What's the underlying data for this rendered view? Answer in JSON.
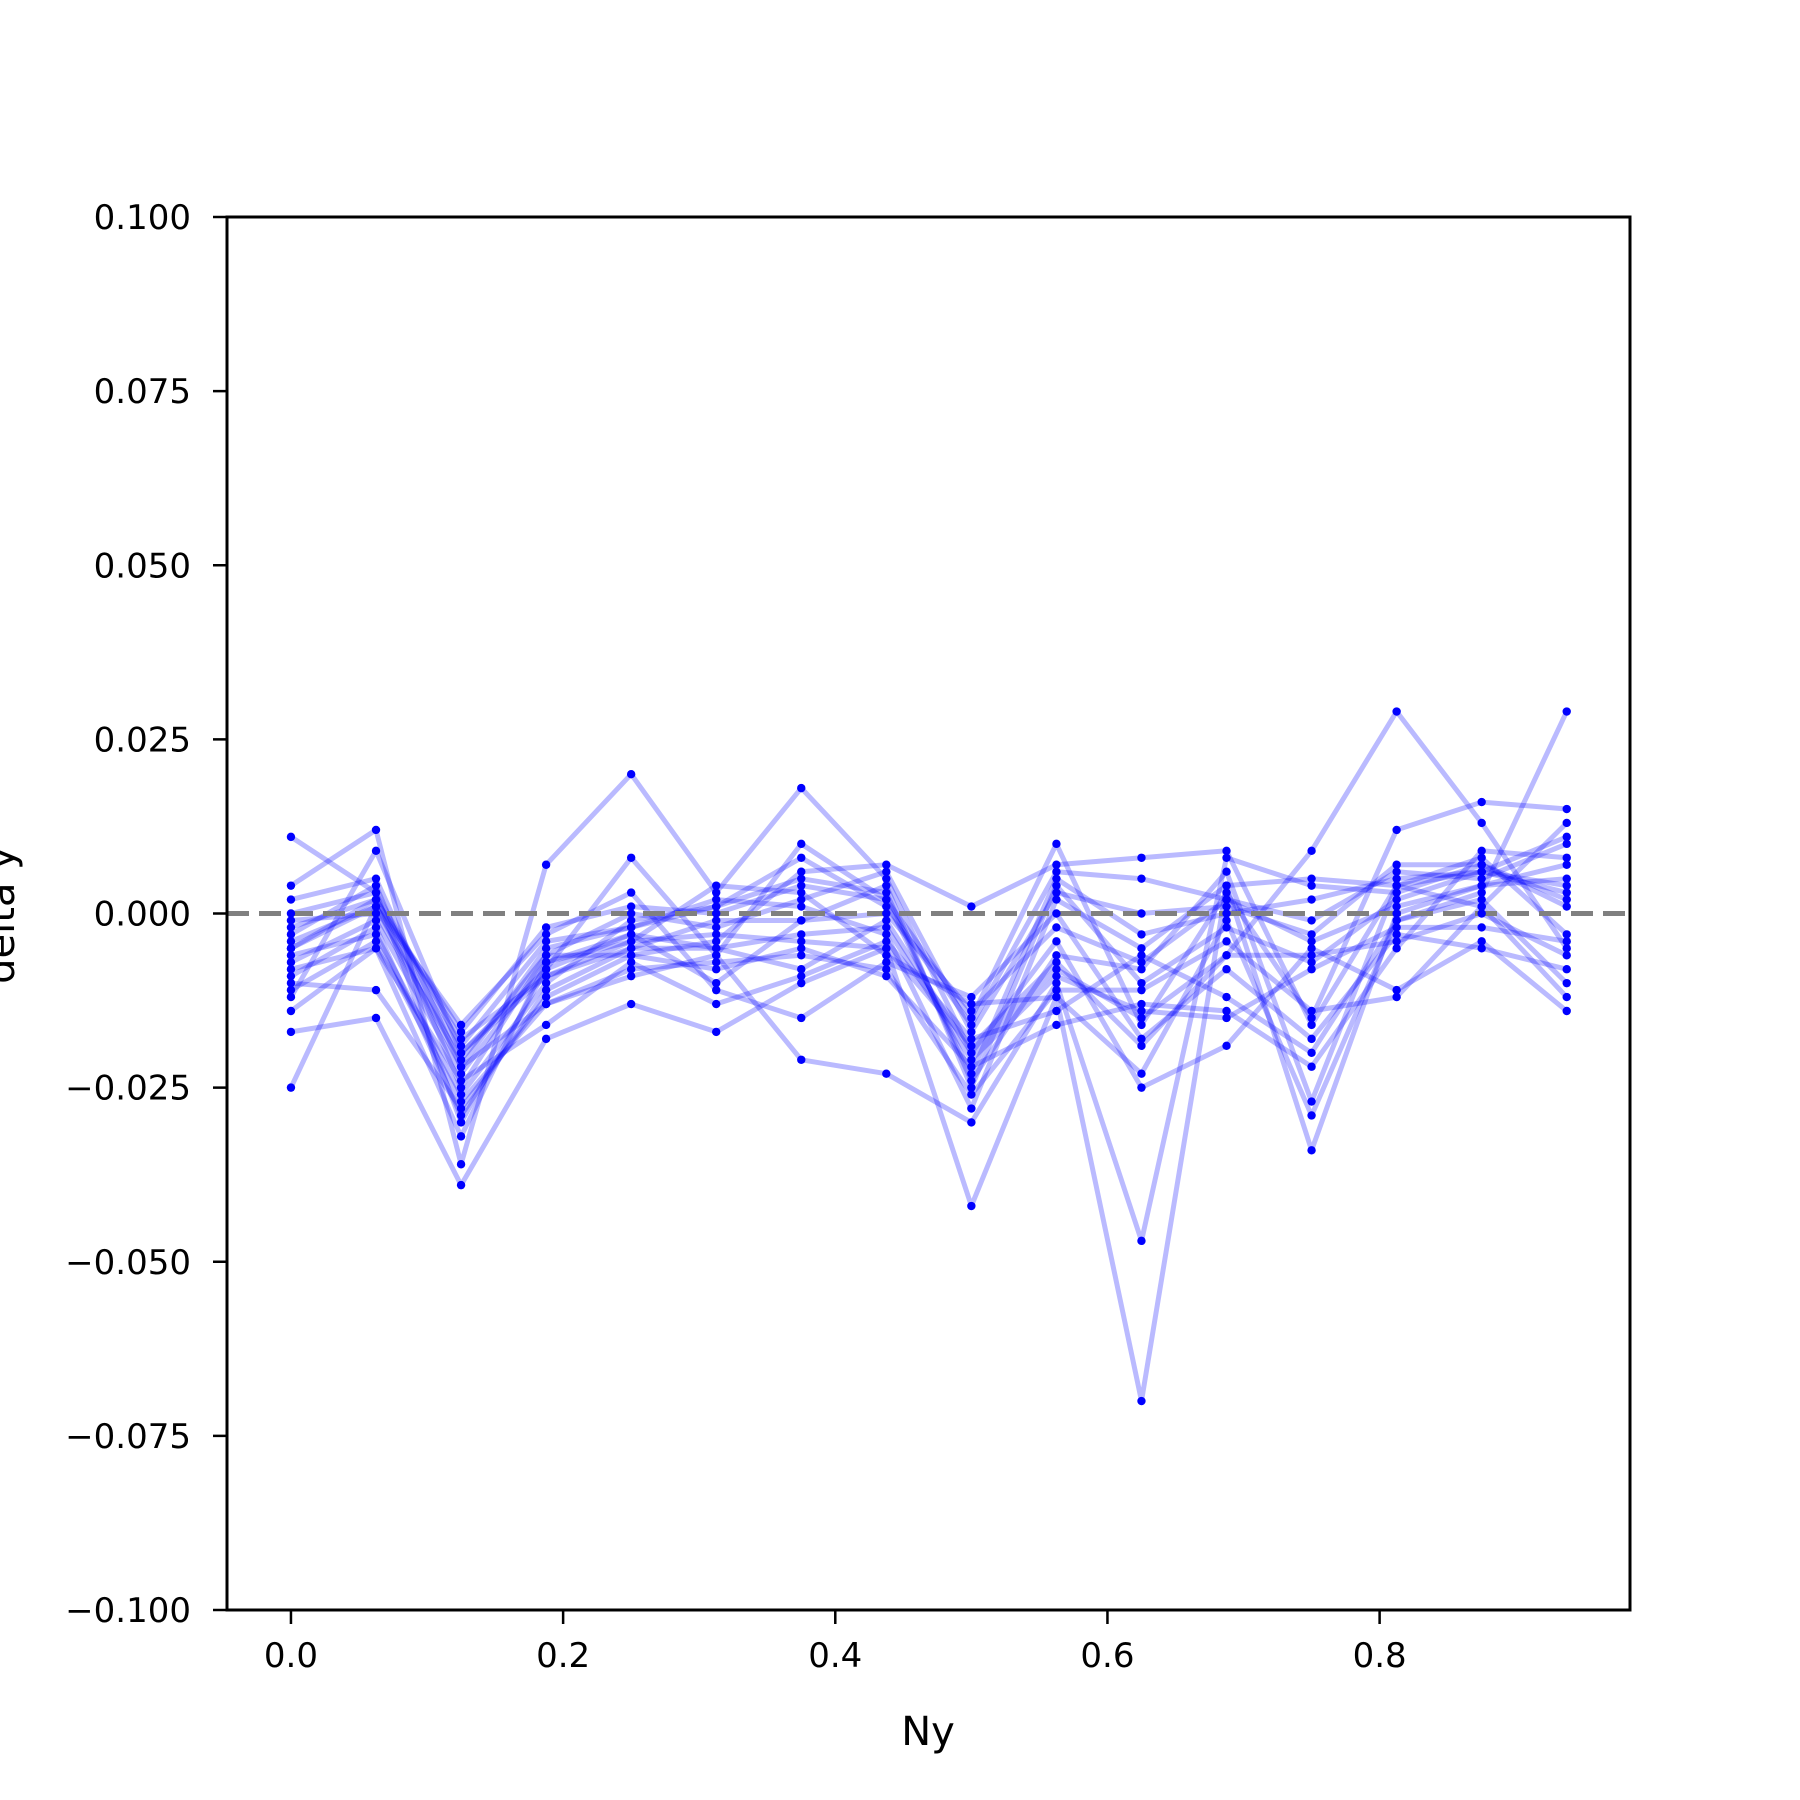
{
  "chart_data": {
    "type": "line",
    "xlabel": "Ny",
    "ylabel": "delta y",
    "xlim": [
      -0.047,
      0.984
    ],
    "ylim": [
      -0.1,
      0.1
    ],
    "x_ticks": [
      0.0,
      0.2,
      0.4,
      0.6,
      0.8
    ],
    "x_tick_labels": [
      "0.0",
      "0.2",
      "0.4",
      "0.6",
      "0.8"
    ],
    "y_ticks": [
      0.1,
      0.075,
      0.05,
      0.025,
      0.0,
      -0.025,
      -0.05,
      -0.075,
      -0.1
    ],
    "y_tick_labels": [
      "0.100",
      "0.075",
      "0.050",
      "0.025",
      "0.000",
      "−0.025",
      "−0.050",
      "−0.075",
      "−0.100"
    ],
    "reference_line": {
      "y": 0.0,
      "style": "dashed",
      "color": "#808080"
    },
    "line_color": "#0000ff",
    "line_opacity": 0.27,
    "marker_color": "#0000ff",
    "grid": false,
    "x": [
      0.0,
      0.0625,
      0.125,
      0.1875,
      0.25,
      0.3125,
      0.375,
      0.4375,
      0.5,
      0.5625,
      0.625,
      0.6875,
      0.75,
      0.8125,
      0.875,
      0.9375
    ],
    "series": [
      {
        "values": [
          0.011,
          0.003,
          -0.03,
          -0.008,
          -0.003,
          -0.01,
          -0.001,
          0.004,
          -0.025,
          0.004,
          -0.01,
          -0.002,
          -0.007,
          0.002,
          0.006,
          0.003
        ]
      },
      {
        "values": [
          -0.025,
          0.001,
          -0.022,
          -0.013,
          -0.009,
          -0.006,
          -0.021,
          -0.023,
          -0.03,
          -0.01,
          -0.047,
          0.008,
          0.004,
          0.003,
          0.007,
          0.001
        ]
      },
      {
        "values": [
          -0.017,
          -0.015,
          -0.039,
          -0.018,
          -0.013,
          -0.017,
          -0.01,
          -0.005,
          -0.042,
          -0.012,
          -0.07,
          0.004,
          0.005,
          0.004,
          0.008,
          -0.003
        ]
      },
      {
        "values": [
          0.004,
          0.012,
          -0.036,
          0.007,
          0.02,
          0.003,
          0.018,
          0.005,
          -0.02,
          -0.008,
          -0.015,
          -0.006,
          0.009,
          0.029,
          0.013,
          -0.005
        ]
      },
      {
        "values": [
          -0.012,
          0.009,
          -0.02,
          -0.008,
          0.008,
          -0.006,
          0.01,
          0.002,
          -0.015,
          0.01,
          -0.016,
          0.003,
          -0.015,
          0.012,
          0.016,
          0.015
        ]
      },
      {
        "values": [
          -0.003,
          0.004,
          -0.025,
          -0.006,
          -0.006,
          -0.004,
          0.006,
          0.007,
          0.001,
          0.007,
          0.008,
          0.009,
          -0.016,
          0.004,
          0.006,
          0.011
        ]
      },
      {
        "values": [
          -0.008,
          -0.005,
          -0.032,
          -0.007,
          -0.003,
          -0.005,
          -0.008,
          -0.001,
          -0.02,
          -0.004,
          -0.025,
          -0.019,
          -0.005,
          -0.011,
          -0.004,
          -0.014
        ]
      },
      {
        "values": [
          -0.005,
          0.002,
          -0.018,
          -0.009,
          -0.004,
          0.004,
          0.003,
          -0.006,
          -0.013,
          -0.012,
          -0.023,
          -0.001,
          -0.029,
          -0.001,
          0.003,
          0.029
        ]
      },
      {
        "values": [
          0.002,
          0.005,
          -0.022,
          -0.005,
          -0.002,
          0.002,
          0.001,
          -0.003,
          -0.028,
          0.002,
          -0.005,
          0.004,
          -0.034,
          0.0,
          0.004,
          0.005
        ]
      },
      {
        "values": [
          -0.01,
          -0.011,
          -0.028,
          -0.012,
          -0.006,
          -0.008,
          -0.005,
          -0.009,
          -0.022,
          -0.016,
          -0.013,
          -0.014,
          -0.022,
          -0.005,
          0.009,
          0.008
        ]
      },
      {
        "values": [
          -0.004,
          0.001,
          -0.016,
          -0.003,
          0.003,
          -0.011,
          -0.015,
          -0.007,
          -0.012,
          0.0,
          -0.018,
          -0.008,
          -0.018,
          -0.003,
          -0.005,
          -0.008
        ]
      },
      {
        "values": [
          -0.006,
          -0.003,
          -0.026,
          -0.01,
          -0.001,
          0.001,
          0.005,
          0.003,
          -0.024,
          -0.006,
          -0.008,
          0.006,
          -0.027,
          0.004,
          0.001,
          0.013
        ]
      },
      {
        "values": [
          -0.014,
          -0.005,
          -0.024,
          -0.016,
          -0.007,
          -0.013,
          -0.009,
          -0.004,
          -0.018,
          -0.014,
          -0.006,
          -0.012,
          -0.02,
          -0.001,
          0.002,
          -0.01
        ]
      },
      {
        "values": [
          -0.001,
          0.0,
          -0.021,
          -0.006,
          0.0,
          -0.002,
          0.002,
          0.006,
          -0.017,
          0.003,
          0.0,
          0.001,
          -0.003,
          0.007,
          0.007,
          0.002
        ]
      },
      {
        "values": [
          -0.009,
          -0.002,
          -0.029,
          -0.011,
          -0.005,
          -0.005,
          -0.003,
          -0.002,
          -0.021,
          -0.009,
          -0.014,
          -0.015,
          -0.008,
          -0.002,
          -0.002,
          -0.004
        ]
      },
      {
        "values": [
          0.0,
          0.003,
          -0.019,
          -0.004,
          -0.002,
          0.001,
          0.008,
          0.001,
          -0.016,
          0.006,
          0.005,
          0.002,
          -0.001,
          0.006,
          0.005,
          0.01
        ]
      },
      {
        "values": [
          -0.007,
          -0.001,
          -0.023,
          -0.007,
          -0.004,
          -0.003,
          -0.004,
          -0.005,
          -0.019,
          -0.007,
          -0.019,
          -0.006,
          -0.006,
          -0.004,
          0.0,
          -0.006
        ]
      },
      {
        "values": [
          -0.002,
          0.002,
          -0.017,
          -0.002,
          0.001,
          0.0,
          0.004,
          0.002,
          -0.023,
          0.005,
          -0.003,
          0.0,
          0.002,
          0.005,
          0.006,
          0.004
        ]
      },
      {
        "values": [
          -0.011,
          -0.004,
          -0.027,
          -0.013,
          -0.008,
          -0.007,
          -0.006,
          -0.008,
          -0.026,
          -0.011,
          -0.011,
          -0.004,
          -0.014,
          -0.012,
          0.001,
          -0.012
        ]
      },
      {
        "values": [
          -0.005,
          0.001,
          -0.02,
          -0.009,
          -0.005,
          -0.001,
          -0.001,
          0.0,
          -0.014,
          -0.002,
          -0.007,
          0.002,
          -0.004,
          0.001,
          0.004,
          0.007
        ]
      }
    ]
  }
}
